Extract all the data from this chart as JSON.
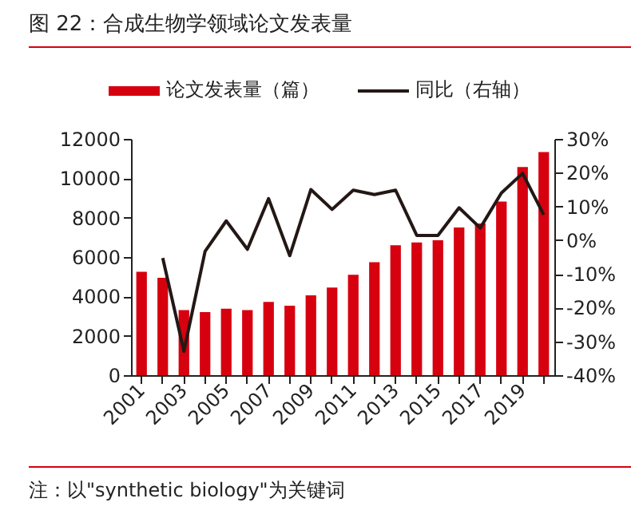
{
  "chart_data": {
    "type": "bar",
    "title": "图 22：合成生物学领域论文发表量",
    "categories": [
      "2001",
      null,
      "2003",
      null,
      "2005",
      null,
      "2007",
      null,
      "2009",
      null,
      "2011",
      null,
      "2013",
      null,
      "2015",
      null,
      "2017",
      null,
      "2019",
      null
    ],
    "series": [
      {
        "name": "论文发表量（篇）",
        "color": "#d7000f",
        "values": [
          5250,
          4950,
          3300,
          3200,
          3380,
          3300,
          3720,
          3530,
          4050,
          4450,
          5100,
          5740,
          6600,
          6740,
          6850,
          7500,
          7700,
          8820,
          10570,
          11330
        ]
      },
      {
        "name": "同比（右轴）",
        "type": "line",
        "axis": "y2",
        "color": "#231815",
        "values": [
          null,
          -5.3,
          -32.9,
          -3.3,
          5.7,
          -2.7,
          12.3,
          -4.6,
          15,
          9.1,
          14.8,
          13.5,
          14.8,
          1.4,
          1.4,
          9.6,
          3.6,
          14,
          19.8,
          7.5
        ]
      }
    ],
    "ylim": [
      0,
      12000
    ],
    "yticks": [
      0,
      2000,
      4000,
      6000,
      8000,
      10000,
      12000
    ],
    "y2lim": [
      -40,
      30
    ],
    "y2ticks": [
      {
        "value": -40,
        "label": "-40%"
      },
      {
        "value": -30,
        "label": "-30%"
      },
      {
        "value": -20,
        "label": "-20%"
      },
      {
        "value": -10,
        "label": "-10%"
      },
      {
        "value": 0,
        "label": "0%"
      },
      {
        "value": 10,
        "label": "10%"
      },
      {
        "value": 20,
        "label": "20%"
      },
      {
        "value": 30,
        "label": "30%"
      }
    ],
    "legend": "top",
    "annotations": [
      "注：以\"synthetic biology\"为关键词"
    ]
  }
}
